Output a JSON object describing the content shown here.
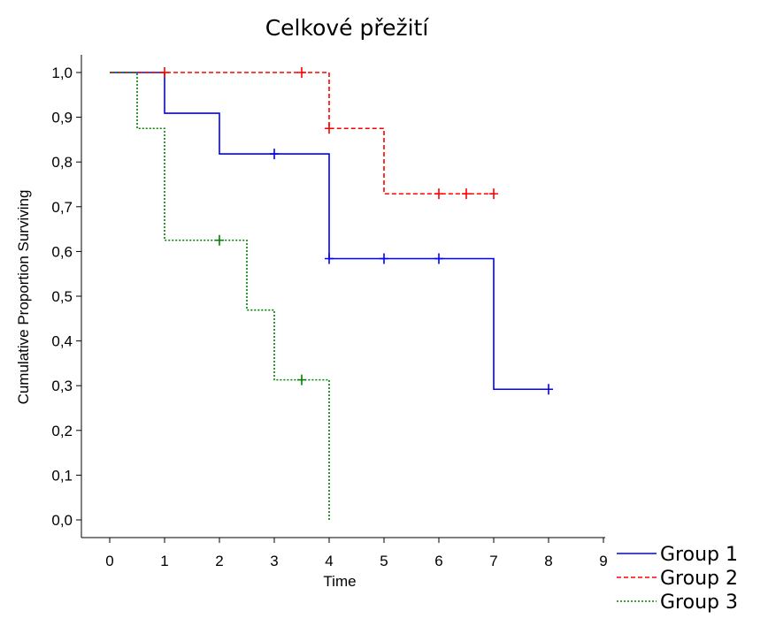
{
  "chart_data": {
    "type": "line",
    "subtype": "kaplan-meier",
    "title": "Celkové přežití",
    "xlabel": "Time",
    "ylabel": "Cumulative Proportion Surviving",
    "xlim": [
      0,
      9
    ],
    "ylim": [
      0,
      1
    ],
    "x_ticks": [
      "0",
      "1",
      "2",
      "3",
      "4",
      "5",
      "6",
      "7",
      "8",
      "9"
    ],
    "y_ticks": [
      "0,0",
      "0,1",
      "0,2",
      "0,3",
      "0,4",
      "0,5",
      "0,6",
      "0,7",
      "0,8",
      "0,9",
      "1,0"
    ],
    "grid": false,
    "legend_position": "bottom-right",
    "series": [
      {
        "name": "Group 1",
        "color": "#0000ff",
        "dash": "solid",
        "steps": [
          [
            0,
            1.0
          ],
          [
            1,
            0.909
          ],
          [
            2,
            0.818
          ],
          [
            4,
            0.584
          ],
          [
            7,
            0.292
          ],
          [
            8,
            0.292
          ]
        ],
        "censored": [
          [
            3,
            0.818
          ],
          [
            4,
            0.584
          ],
          [
            5,
            0.584
          ],
          [
            6,
            0.584
          ],
          [
            8,
            0.292
          ]
        ]
      },
      {
        "name": "Group 2",
        "color": "#ff0000",
        "dash": "dashed",
        "steps": [
          [
            0,
            1.0
          ],
          [
            4,
            0.875
          ],
          [
            5,
            0.729
          ],
          [
            7,
            0.729
          ]
        ],
        "censored": [
          [
            1,
            1.0
          ],
          [
            3.5,
            1.0
          ],
          [
            4,
            0.875
          ],
          [
            6,
            0.729
          ],
          [
            6.5,
            0.729
          ],
          [
            7,
            0.729
          ]
        ]
      },
      {
        "name": "Group 3",
        "color": "#008000",
        "dash": "dotted",
        "steps": [
          [
            0,
            1.0
          ],
          [
            0.5,
            0.875
          ],
          [
            1,
            0.625
          ],
          [
            2.5,
            0.469
          ],
          [
            3,
            0.313
          ],
          [
            4,
            0.0
          ]
        ],
        "censored": [
          [
            2,
            0.625
          ],
          [
            3.5,
            0.313
          ]
        ]
      }
    ]
  }
}
